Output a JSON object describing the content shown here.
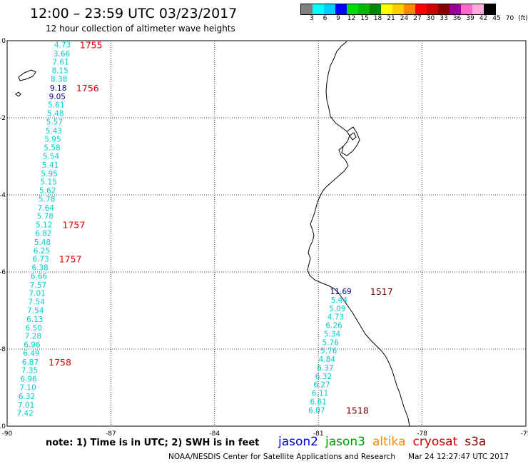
{
  "header": {
    "title": "12:00 – 23:59 UTC 03/23/2017",
    "subtitle": "12 hour collection of altimeter wave heights"
  },
  "colorbar": {
    "colors": [
      "#808080",
      "#00ffff",
      "#00ccff",
      "#0000ff",
      "#00dd00",
      "#00bb00",
      "#008800",
      "#ffff00",
      "#ffcc00",
      "#ff8800",
      "#ff0000",
      "#cc0000",
      "#880000",
      "#990099",
      "#ff66cc",
      "#ffaadd",
      "#000000"
    ],
    "labels": [
      "3",
      "6",
      "9",
      "12",
      "15",
      "18",
      "21",
      "24",
      "27",
      "30",
      "33",
      "36",
      "39",
      "42",
      "45",
      "70",
      "(ft)"
    ]
  },
  "map": {
    "lon_range": [
      -90,
      -75
    ],
    "lat_range": [
      -10,
      0
    ],
    "x_ticks": [
      "-90",
      "-87",
      "-84",
      "-81",
      "-78",
      "-75"
    ],
    "y_ticks": [
      "0",
      "-2",
      "-4",
      "-6",
      "-8",
      "-10"
    ]
  },
  "tracks": [
    {
      "satellite": "cryosat",
      "color": "#00cccc",
      "labels": [
        {
          "lat": -0.1,
          "lon": -88.4,
          "value": "4.73"
        },
        {
          "lat": -0.33,
          "lon": -88.42,
          "value": "3.66"
        },
        {
          "lat": -0.55,
          "lon": -88.45,
          "value": "7.61"
        },
        {
          "lat": -0.77,
          "lon": -88.47,
          "value": "8.15"
        },
        {
          "lat": -0.99,
          "lon": -88.5,
          "value": "8.38"
        },
        {
          "lat": -1.22,
          "lon": -88.52,
          "value": "9.18"
        },
        {
          "lat": -1.44,
          "lon": -88.55,
          "value": "9.05"
        },
        {
          "lat": -1.66,
          "lon": -88.58,
          "value": "5.61"
        },
        {
          "lat": -1.88,
          "lon": -88.6,
          "value": "5.48"
        },
        {
          "lat": -2.1,
          "lon": -88.63,
          "value": "5.57"
        },
        {
          "lat": -2.33,
          "lon": -88.65,
          "value": "5.43"
        },
        {
          "lat": -2.55,
          "lon": -88.68,
          "value": "5.95"
        },
        {
          "lat": -2.77,
          "lon": -88.7,
          "value": "5.58"
        },
        {
          "lat": -2.99,
          "lon": -88.73,
          "value": "5.54"
        },
        {
          "lat": -3.22,
          "lon": -88.75,
          "value": "5.41"
        },
        {
          "lat": -3.44,
          "lon": -88.78,
          "value": "5.95"
        },
        {
          "lat": -3.66,
          "lon": -88.8,
          "value": "5.15"
        },
        {
          "lat": -3.88,
          "lon": -88.83,
          "value": "5.62"
        },
        {
          "lat": -4.1,
          "lon": -88.85,
          "value": "5.78"
        },
        {
          "lat": -4.33,
          "lon": -88.88,
          "value": "7.64"
        },
        {
          "lat": -4.55,
          "lon": -88.9,
          "value": "5.78"
        },
        {
          "lat": -4.77,
          "lon": -88.93,
          "value": "5.12"
        },
        {
          "lat": -4.99,
          "lon": -88.95,
          "value": "6.82"
        },
        {
          "lat": -5.22,
          "lon": -88.98,
          "value": "5.48"
        },
        {
          "lat": -5.44,
          "lon": -89.0,
          "value": "6.25"
        },
        {
          "lat": -5.66,
          "lon": -89.03,
          "value": "6.73"
        },
        {
          "lat": -5.88,
          "lon": -89.05,
          "value": "6.38"
        },
        {
          "lat": -6.1,
          "lon": -89.08,
          "value": "6.66"
        },
        {
          "lat": -6.33,
          "lon": -89.1,
          "value": "7.57"
        },
        {
          "lat": -6.55,
          "lon": -89.13,
          "value": "7.01"
        },
        {
          "lat": -6.77,
          "lon": -89.15,
          "value": "7.54"
        },
        {
          "lat": -6.99,
          "lon": -89.18,
          "value": "7.54"
        },
        {
          "lat": -7.22,
          "lon": -89.2,
          "value": "6.13"
        },
        {
          "lat": -7.44,
          "lon": -89.23,
          "value": "6.50"
        },
        {
          "lat": -7.66,
          "lon": -89.25,
          "value": "7.28"
        },
        {
          "lat": -7.88,
          "lon": -89.28,
          "value": "6.96"
        },
        {
          "lat": -8.1,
          "lon": -89.3,
          "value": "6.49"
        },
        {
          "lat": -8.33,
          "lon": -89.33,
          "value": "6.87"
        },
        {
          "lat": -8.55,
          "lon": -89.35,
          "value": "7.35"
        },
        {
          "lat": -8.77,
          "lon": -89.38,
          "value": "6.96"
        },
        {
          "lat": -8.99,
          "lon": -89.4,
          "value": "7.10"
        },
        {
          "lat": -9.22,
          "lon": -89.43,
          "value": "6.32"
        },
        {
          "lat": -9.44,
          "lon": -89.45,
          "value": "7.01"
        },
        {
          "lat": -9.66,
          "lon": -89.48,
          "value": "7.42"
        }
      ],
      "dark_indices": [
        5,
        6
      ],
      "times": [
        {
          "lat": -0.1,
          "lon": -87.9,
          "value": "1755"
        },
        {
          "lat": -1.22,
          "lon": -88.0,
          "value": "1756"
        },
        {
          "lat": -4.77,
          "lon": -88.4,
          "value": "1757"
        },
        {
          "lat": -5.66,
          "lon": -88.5,
          "value": "1757"
        },
        {
          "lat": -8.33,
          "lon": -88.8,
          "value": "1758"
        }
      ]
    },
    {
      "satellite": "s3a",
      "color": "#00cccc",
      "labels": [
        {
          "lat": -6.5,
          "lon": -80.35,
          "value": "11.69"
        },
        {
          "lat": -6.72,
          "lon": -80.4,
          "value": "5.44"
        },
        {
          "lat": -6.94,
          "lon": -80.45,
          "value": "5.09"
        },
        {
          "lat": -7.16,
          "lon": -80.5,
          "value": "4.73"
        },
        {
          "lat": -7.38,
          "lon": -80.55,
          "value": "6.26"
        },
        {
          "lat": -7.6,
          "lon": -80.6,
          "value": "5.34"
        },
        {
          "lat": -7.82,
          "lon": -80.65,
          "value": "5.76"
        },
        {
          "lat": -8.04,
          "lon": -80.7,
          "value": "5.76"
        },
        {
          "lat": -8.26,
          "lon": -80.75,
          "value": "4.84"
        },
        {
          "lat": -8.48,
          "lon": -80.8,
          "value": "6.37"
        },
        {
          "lat": -8.7,
          "lon": -80.85,
          "value": "6.32"
        },
        {
          "lat": -8.92,
          "lon": -80.9,
          "value": "6.27"
        },
        {
          "lat": -9.14,
          "lon": -80.95,
          "value": "6.11"
        },
        {
          "lat": -9.36,
          "lon": -81.0,
          "value": "6.61"
        },
        {
          "lat": -9.58,
          "lon": -81.05,
          "value": "6.07"
        }
      ],
      "dark_indices": [
        0
      ],
      "times": [
        {
          "lat": -6.5,
          "lon": -79.5,
          "value": "1517"
        },
        {
          "lat": -9.58,
          "lon": -80.2,
          "value": "1518"
        }
      ]
    }
  ],
  "legend": {
    "note": "note: 1) Time is in UTC; 2) SWH is in feet",
    "satellites": [
      {
        "name": "jason2",
        "color": "#0000cc"
      },
      {
        "name": "jason3",
        "color": "#009900"
      },
      {
        "name": "altika",
        "color": "#ff8800"
      },
      {
        "name": "cryosat",
        "color": "#cc0000"
      },
      {
        "name": "s3a",
        "color": "#880000"
      }
    ]
  },
  "footer": {
    "credit": "NOAA/NESDIS Center for Satellite Applications and Research",
    "timestamp": "Mar 24 12:27:47 UTC 2017"
  }
}
